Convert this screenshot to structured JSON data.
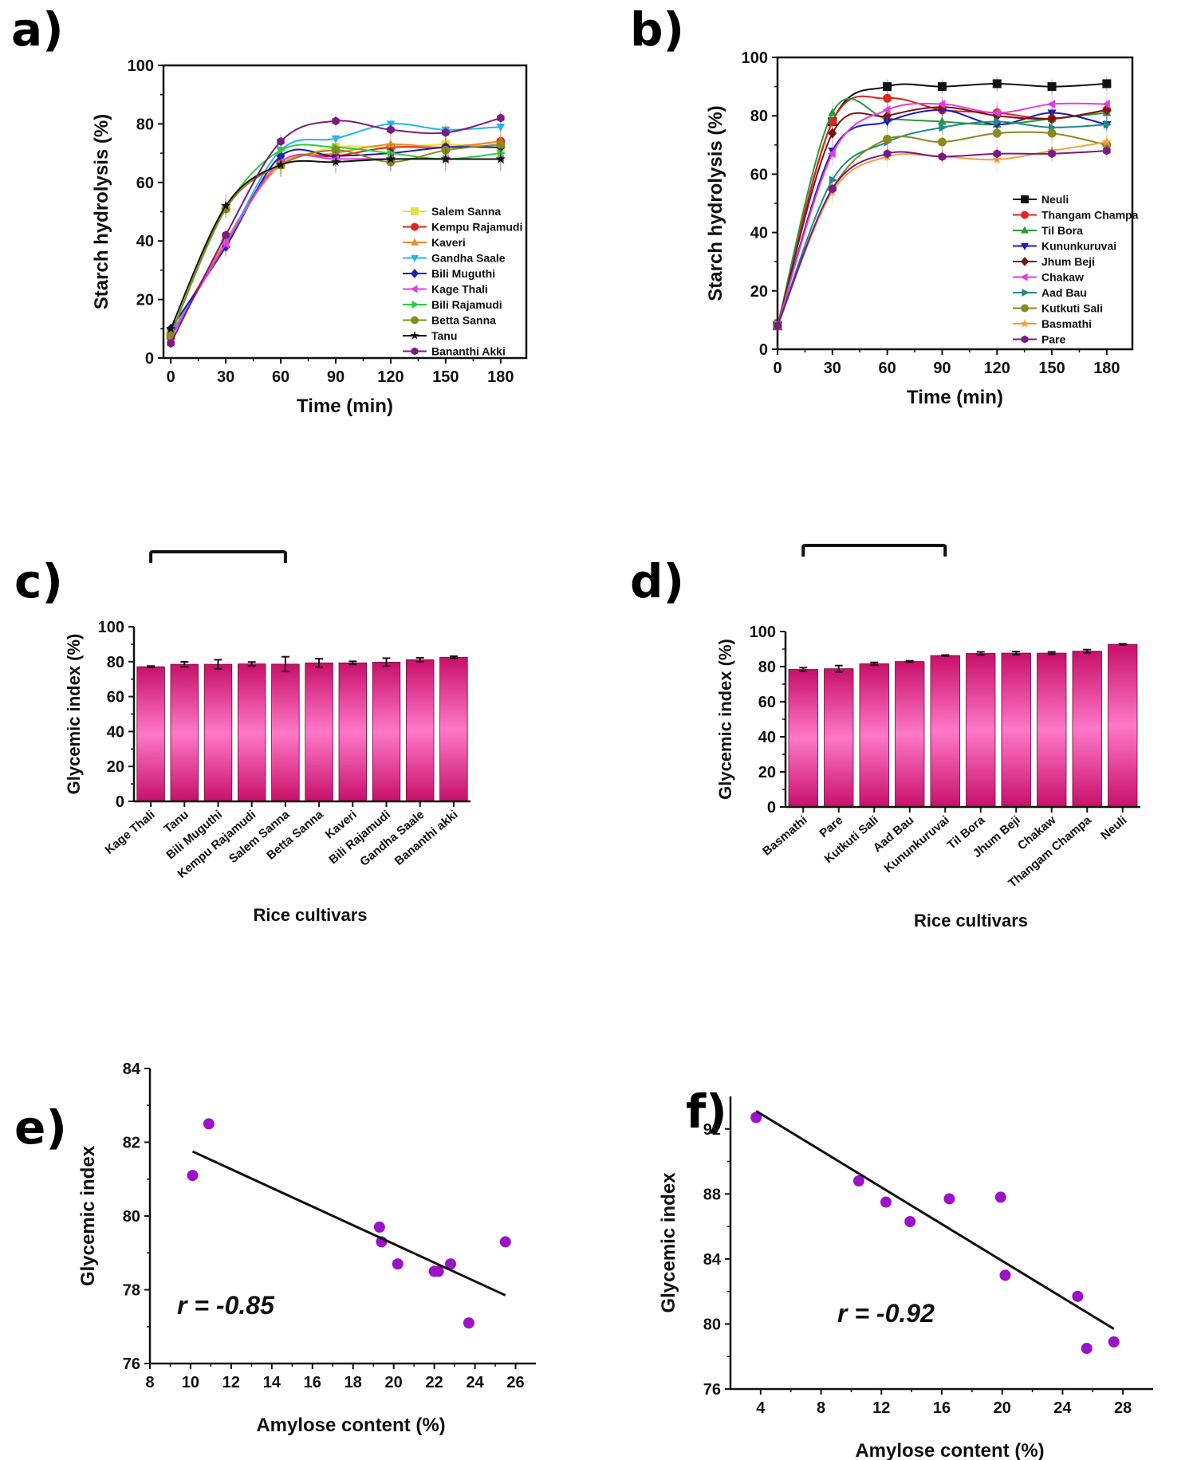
{
  "figure": {
    "panel_labels": [
      "a)",
      "b)",
      "c)",
      "d)",
      "e)",
      "f)"
    ]
  },
  "chart_data": [
    {
      "id": "a",
      "type": "line",
      "title": "",
      "xlabel": "Time (min)",
      "ylabel": "Starch hydrolysis (%)",
      "xlim": [
        -4,
        194
      ],
      "ylim": [
        0,
        100
      ],
      "xticks": [
        0,
        30,
        60,
        90,
        120,
        150,
        180
      ],
      "yticks": [
        0,
        20,
        40,
        60,
        80,
        100
      ],
      "legend_position": "bottom-right",
      "x": [
        0,
        30,
        60,
        90,
        120,
        150,
        180
      ],
      "series": [
        {
          "name": "Salem Sanna",
          "color": "#e6e04a",
          "marker": "square",
          "values": [
            8,
            51,
            66,
            72,
            72,
            73,
            72
          ]
        },
        {
          "name": "Kempu Rajamudi",
          "color": "#e3231c",
          "marker": "circle",
          "values": [
            7,
            40,
            67,
            69,
            72,
            72,
            74
          ]
        },
        {
          "name": "Kaveri",
          "color": "#f08a24",
          "marker": "triangle-up",
          "values": [
            8,
            40,
            66,
            70,
            73,
            72,
            74
          ]
        },
        {
          "name": "Gandha Saale",
          "color": "#29b6e8",
          "marker": "triangle-down",
          "values": [
            8,
            39,
            71,
            75,
            80,
            78,
            79
          ]
        },
        {
          "name": "Bili Muguthi",
          "color": "#1a1ab8",
          "marker": "diamond",
          "values": [
            10,
            38,
            69,
            69,
            70,
            72,
            72
          ]
        },
        {
          "name": "Kage Thali",
          "color": "#e040e0",
          "marker": "triangle-left",
          "values": [
            7,
            39,
            67,
            68,
            68,
            68,
            68
          ]
        },
        {
          "name": "Bili Rajamudi",
          "color": "#2ecc40",
          "marker": "triangle-right",
          "values": [
            8,
            51,
            71,
            72,
            70,
            68,
            70
          ]
        },
        {
          "name": "Betta Sanna",
          "color": "#8a8a1e",
          "marker": "circle",
          "values": [
            8,
            51,
            66,
            71,
            67,
            71,
            73
          ]
        },
        {
          "name": "Tanu",
          "color": "#111111",
          "marker": "star",
          "values": [
            10,
            52,
            66,
            67,
            68,
            68,
            68
          ]
        },
        {
          "name": "Bananthi Akki",
          "color": "#7b1a80",
          "marker": "hexagon",
          "values": [
            5,
            42,
            74,
            81,
            78,
            77,
            82
          ]
        }
      ]
    },
    {
      "id": "b",
      "type": "line",
      "title": "",
      "xlabel": "Time (min)",
      "ylabel": "Starch hydrolysis (%)",
      "xlim": [
        0,
        194
      ],
      "ylim": [
        0,
        100
      ],
      "xticks": [
        0,
        30,
        60,
        90,
        120,
        150,
        180
      ],
      "yticks": [
        0,
        20,
        40,
        60,
        80,
        100
      ],
      "legend_position": "bottom-right",
      "x": [
        0,
        30,
        60,
        90,
        120,
        150,
        180
      ],
      "series": [
        {
          "name": "Neuli",
          "color": "#111111",
          "marker": "square",
          "values": [
            8,
            78,
            90,
            90,
            91,
            90,
            91
          ]
        },
        {
          "name": "Thangam Champa",
          "color": "#e3231c",
          "marker": "circle",
          "values": [
            8,
            78,
            86,
            82,
            81,
            79,
            82
          ]
        },
        {
          "name": "Til Bora",
          "color": "#2a9a3a",
          "marker": "triangle-up",
          "values": [
            8,
            81,
            79,
            78,
            77,
            79,
            81
          ]
        },
        {
          "name": "Kununkuruvai",
          "color": "#1a1ab8",
          "marker": "triangle-down",
          "values": [
            8,
            68,
            78,
            82,
            77,
            81,
            77
          ]
        },
        {
          "name": "Jhum Beji",
          "color": "#7a1414",
          "marker": "diamond",
          "values": [
            8,
            74,
            80,
            83,
            80,
            79,
            82
          ]
        },
        {
          "name": "Chakaw",
          "color": "#e040e0",
          "marker": "triangle-left",
          "values": [
            8,
            67,
            82,
            84,
            81,
            84,
            84
          ]
        },
        {
          "name": "Aad Bau",
          "color": "#1f8a8a",
          "marker": "triangle-right",
          "values": [
            8,
            58,
            71,
            76,
            78,
            76,
            77
          ]
        },
        {
          "name": "Kutkuti Sali",
          "color": "#8a8a1e",
          "marker": "circle",
          "values": [
            8,
            55,
            72,
            71,
            74,
            74,
            70
          ]
        },
        {
          "name": "Basmathi",
          "color": "#f0a040",
          "marker": "star",
          "values": [
            8,
            54,
            66,
            66,
            65,
            68,
            71
          ]
        },
        {
          "name": "Pare",
          "color": "#7b1a80",
          "marker": "hexagon",
          "values": [
            8,
            55,
            67,
            66,
            67,
            67,
            68
          ]
        }
      ]
    },
    {
      "id": "c",
      "type": "bar",
      "title": "",
      "xlabel": "Rice cultivars",
      "ylabel": "Glycemic index (%)",
      "ylim": [
        0,
        100
      ],
      "yticks": [
        0,
        20,
        40,
        60,
        80,
        100
      ],
      "bar_color_edge": "#c8106a",
      "bar_color_center": "#ff78c8",
      "categories": [
        "Kage Thali",
        "Tanu",
        "Bili Muguthi",
        "Kempu Rajamudi",
        "Salem Sanna",
        "Betta Sanna",
        "Kaveri",
        "Bili Rajamudi",
        "Gandha Saale",
        "Bananthi akki"
      ],
      "values": [
        77.1,
        78.5,
        78.5,
        78.7,
        78.6,
        79.3,
        79.3,
        79.7,
        81.1,
        82.5
      ],
      "errors": [
        0.4,
        1.4,
        2.6,
        1.1,
        4.2,
        2.4,
        0.9,
        2.3,
        1.1,
        0.6
      ],
      "significance": [
        {
          "from": 0,
          "to": 4,
          "label": "*"
        },
        {
          "from": 0,
          "to": 8,
          "label": "*"
        },
        {
          "from": 0,
          "to": 9,
          "label": "* *"
        }
      ]
    },
    {
      "id": "d",
      "type": "bar",
      "title": "",
      "xlabel": "Rice cultivars",
      "ylabel": "Glycemic index (%)",
      "ylim": [
        0,
        100
      ],
      "yticks": [
        0,
        20,
        40,
        60,
        80,
        100
      ],
      "bar_color_edge": "#c8106a",
      "bar_color_center": "#ff78c8",
      "categories": [
        "Basmathi",
        "Pare",
        "Kutkuti Sali",
        "Aad Bau",
        "Kununkuruvai",
        "Til Bora",
        "Jhum Beji",
        "Chakaw",
        "Thangam Champa",
        "Neuli"
      ],
      "values": [
        78.4,
        78.8,
        81.6,
        82.9,
        86.3,
        87.5,
        87.7,
        87.7,
        88.8,
        92.7
      ],
      "errors": [
        1.0,
        1.8,
        0.8,
        0.4,
        0.3,
        0.9,
        0.9,
        0.7,
        0.9,
        0.3
      ],
      "significance": [
        {
          "from": 0,
          "to": 4,
          "label": "*"
        },
        {
          "from": 0,
          "to": 6,
          "label": "* *"
        },
        {
          "from": 0,
          "to": 9,
          "label": "* *"
        }
      ]
    },
    {
      "id": "e",
      "type": "scatter",
      "title": "",
      "xlabel": "Amylose content (%)",
      "ylabel": "Glycemic index",
      "xlim": [
        8,
        27
      ],
      "ylim": [
        76,
        84
      ],
      "xticks": [
        8,
        10,
        12,
        14,
        16,
        18,
        20,
        22,
        24,
        26
      ],
      "yticks": [
        76,
        78,
        80,
        82,
        84
      ],
      "point_color": "#9b12c8",
      "annotation": "r = -0.85",
      "points": [
        [
          10.1,
          81.1
        ],
        [
          10.9,
          82.5
        ],
        [
          19.3,
          79.7
        ],
        [
          19.4,
          79.3
        ],
        [
          20.2,
          78.7
        ],
        [
          22.0,
          78.5
        ],
        [
          22.2,
          78.5
        ],
        [
          22.8,
          78.7
        ],
        [
          23.7,
          77.1
        ],
        [
          25.5,
          79.3
        ]
      ],
      "fit_line": [
        [
          10.1,
          81.75
        ],
        [
          25.5,
          77.85
        ]
      ]
    },
    {
      "id": "f",
      "type": "scatter",
      "title": "",
      "xlabel": "Amylose content (%)",
      "ylabel": "Glycemic index",
      "xlim": [
        2,
        30
      ],
      "ylim": [
        76,
        94
      ],
      "xticks": [
        4,
        8,
        12,
        16,
        20,
        24,
        28
      ],
      "yticks": [
        76,
        80,
        84,
        88,
        92
      ],
      "point_color": "#9b12c8",
      "annotation": "r = -0.92",
      "points": [
        [
          3.7,
          92.7
        ],
        [
          10.5,
          88.8
        ],
        [
          12.3,
          87.5
        ],
        [
          13.9,
          86.3
        ],
        [
          16.5,
          87.7
        ],
        [
          19.9,
          87.8
        ],
        [
          20.2,
          83.0
        ],
        [
          25.0,
          81.7
        ],
        [
          25.6,
          78.5
        ],
        [
          27.4,
          78.9
        ]
      ],
      "fit_line": [
        [
          3.7,
          93.1
        ],
        [
          27.4,
          79.7
        ]
      ]
    }
  ]
}
